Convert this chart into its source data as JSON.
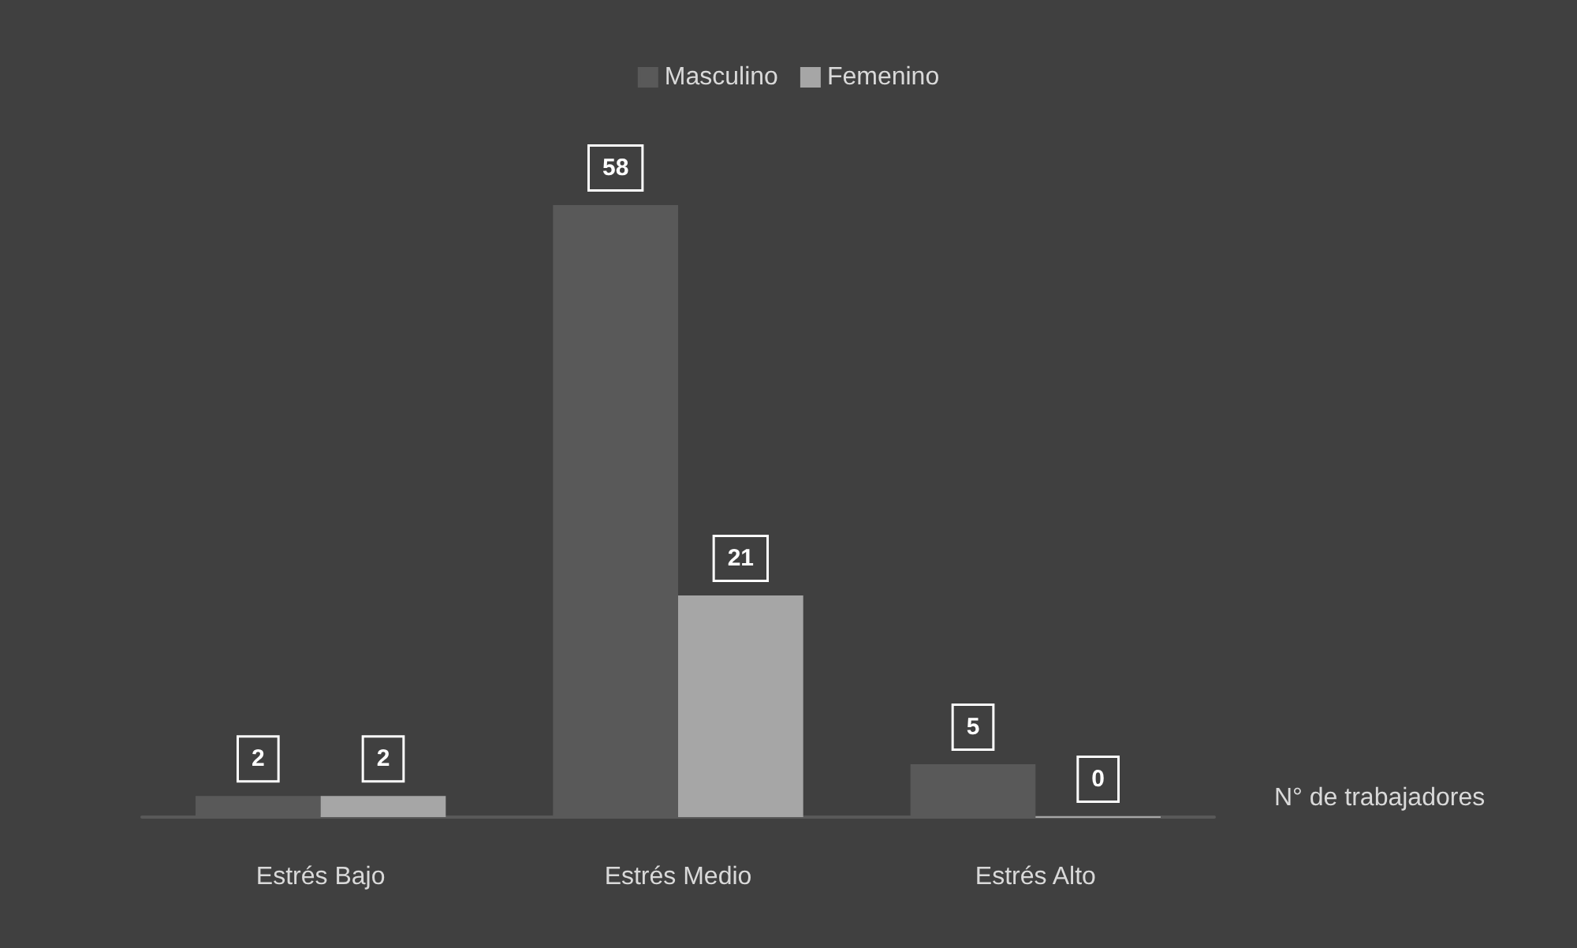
{
  "chart_data": {
    "type": "bar",
    "categories": [
      "Estrés Bajo",
      "Estrés Medio",
      "Estrés Alto"
    ],
    "series": [
      {
        "name": "Masculino",
        "color": "#595959",
        "values": [
          2,
          58,
          5
        ]
      },
      {
        "name": "Femenino",
        "color": "#a6a6a6",
        "values": [
          2,
          21,
          0
        ]
      }
    ],
    "data_labels": true,
    "legend": "top",
    "annotations": [
      "N° de trabajadores"
    ]
  }
}
